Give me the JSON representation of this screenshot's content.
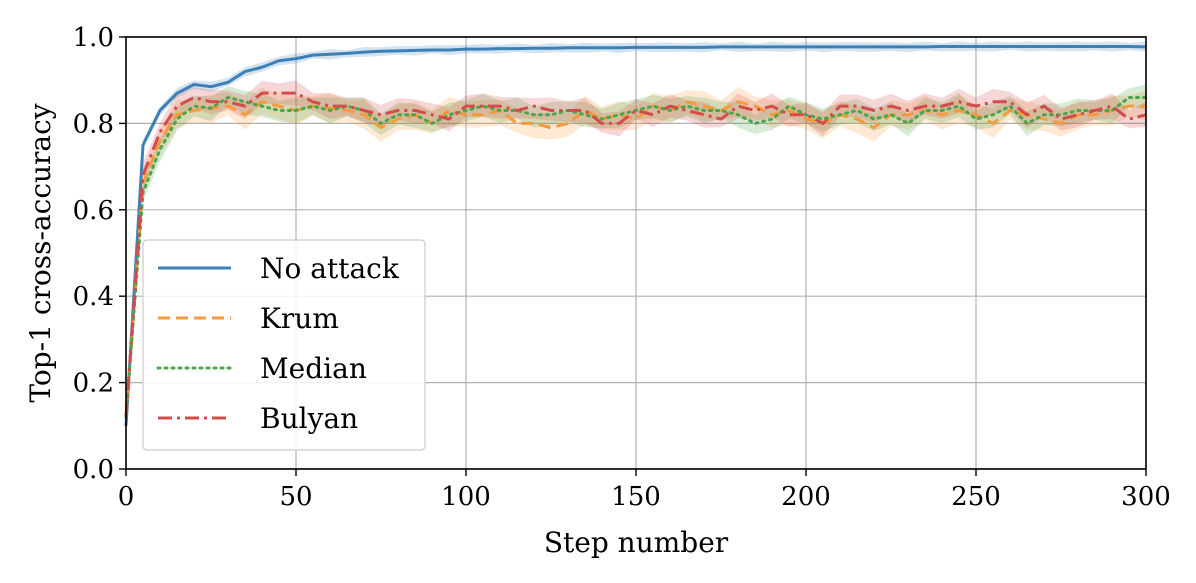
{
  "chart_data": {
    "type": "line",
    "title": "",
    "xlabel": "Step number",
    "ylabel": "Top-1 cross-accuracy",
    "xlim": [
      0,
      300
    ],
    "ylim": [
      0.0,
      1.0
    ],
    "xticks": [
      0,
      50,
      100,
      150,
      200,
      250,
      300
    ],
    "xtick_labels": [
      "0",
      "50",
      "100",
      "150",
      "200",
      "250",
      "300"
    ],
    "yticks": [
      0.0,
      0.2,
      0.4,
      0.6,
      0.8,
      1.0
    ],
    "ytick_labels": [
      "0.0",
      "0.2",
      "0.4",
      "0.6",
      "0.8",
      "1.0"
    ],
    "grid": true,
    "legend_position": "center-left",
    "x": [
      0,
      5,
      10,
      15,
      20,
      25,
      30,
      35,
      40,
      45,
      50,
      55,
      60,
      65,
      70,
      75,
      80,
      85,
      90,
      95,
      100,
      105,
      110,
      115,
      120,
      125,
      130,
      135,
      140,
      145,
      150,
      155,
      160,
      165,
      170,
      175,
      180,
      185,
      190,
      195,
      200,
      205,
      210,
      215,
      220,
      225,
      230,
      235,
      240,
      245,
      250,
      255,
      260,
      265,
      270,
      275,
      280,
      285,
      290,
      295,
      300
    ],
    "series": [
      {
        "name": "No attack",
        "style": "solid",
        "color": "#3b80b7",
        "values": [
          0.1,
          0.75,
          0.83,
          0.87,
          0.89,
          0.885,
          0.895,
          0.92,
          0.93,
          0.945,
          0.95,
          0.958,
          0.96,
          0.962,
          0.965,
          0.967,
          0.968,
          0.969,
          0.97,
          0.97,
          0.972,
          0.972,
          0.973,
          0.973,
          0.974,
          0.974,
          0.975,
          0.975,
          0.975,
          0.975,
          0.976,
          0.976,
          0.976,
          0.976,
          0.976,
          0.977,
          0.977,
          0.977,
          0.977,
          0.977,
          0.977,
          0.977,
          0.977,
          0.977,
          0.977,
          0.977,
          0.977,
          0.977,
          0.978,
          0.978,
          0.978,
          0.978,
          0.978,
          0.978,
          0.978,
          0.978,
          0.978,
          0.978,
          0.978,
          0.978,
          0.977
        ],
        "band": 0.012
      },
      {
        "name": "Krum",
        "style": "dashed",
        "color": "#f59b3c",
        "values": [
          0.12,
          0.66,
          0.76,
          0.82,
          0.83,
          0.835,
          0.84,
          0.82,
          0.85,
          0.84,
          0.83,
          0.84,
          0.835,
          0.83,
          0.82,
          0.79,
          0.81,
          0.82,
          0.8,
          0.83,
          0.82,
          0.82,
          0.83,
          0.8,
          0.8,
          0.79,
          0.8,
          0.83,
          0.81,
          0.82,
          0.81,
          0.84,
          0.83,
          0.85,
          0.84,
          0.83,
          0.85,
          0.84,
          0.82,
          0.83,
          0.81,
          0.8,
          0.82,
          0.81,
          0.79,
          0.82,
          0.82,
          0.83,
          0.82,
          0.83,
          0.82,
          0.8,
          0.83,
          0.82,
          0.81,
          0.8,
          0.82,
          0.82,
          0.83,
          0.84,
          0.84
        ],
        "band": 0.035
      },
      {
        "name": "Median",
        "style": "dotted",
        "color": "#4aa64a",
        "values": [
          0.12,
          0.64,
          0.74,
          0.81,
          0.84,
          0.835,
          0.86,
          0.85,
          0.84,
          0.83,
          0.83,
          0.84,
          0.83,
          0.84,
          0.83,
          0.8,
          0.82,
          0.82,
          0.8,
          0.82,
          0.83,
          0.84,
          0.83,
          0.83,
          0.82,
          0.82,
          0.83,
          0.82,
          0.81,
          0.82,
          0.83,
          0.84,
          0.83,
          0.84,
          0.83,
          0.83,
          0.82,
          0.8,
          0.81,
          0.84,
          0.82,
          0.81,
          0.82,
          0.83,
          0.81,
          0.82,
          0.8,
          0.83,
          0.83,
          0.84,
          0.81,
          0.82,
          0.84,
          0.8,
          0.82,
          0.82,
          0.83,
          0.83,
          0.83,
          0.86,
          0.86
        ],
        "band": 0.03
      },
      {
        "name": "Bulyan",
        "style": "dashdot",
        "color": "#d44b4b",
        "values": [
          0.12,
          0.68,
          0.78,
          0.84,
          0.86,
          0.85,
          0.85,
          0.84,
          0.87,
          0.87,
          0.87,
          0.85,
          0.84,
          0.84,
          0.83,
          0.82,
          0.83,
          0.83,
          0.82,
          0.81,
          0.84,
          0.84,
          0.84,
          0.83,
          0.84,
          0.83,
          0.83,
          0.83,
          0.8,
          0.8,
          0.83,
          0.82,
          0.84,
          0.83,
          0.82,
          0.81,
          0.84,
          0.83,
          0.84,
          0.82,
          0.82,
          0.8,
          0.84,
          0.84,
          0.83,
          0.84,
          0.83,
          0.84,
          0.84,
          0.85,
          0.84,
          0.85,
          0.85,
          0.82,
          0.84,
          0.81,
          0.82,
          0.83,
          0.84,
          0.81,
          0.82
        ],
        "band": 0.03
      }
    ]
  }
}
